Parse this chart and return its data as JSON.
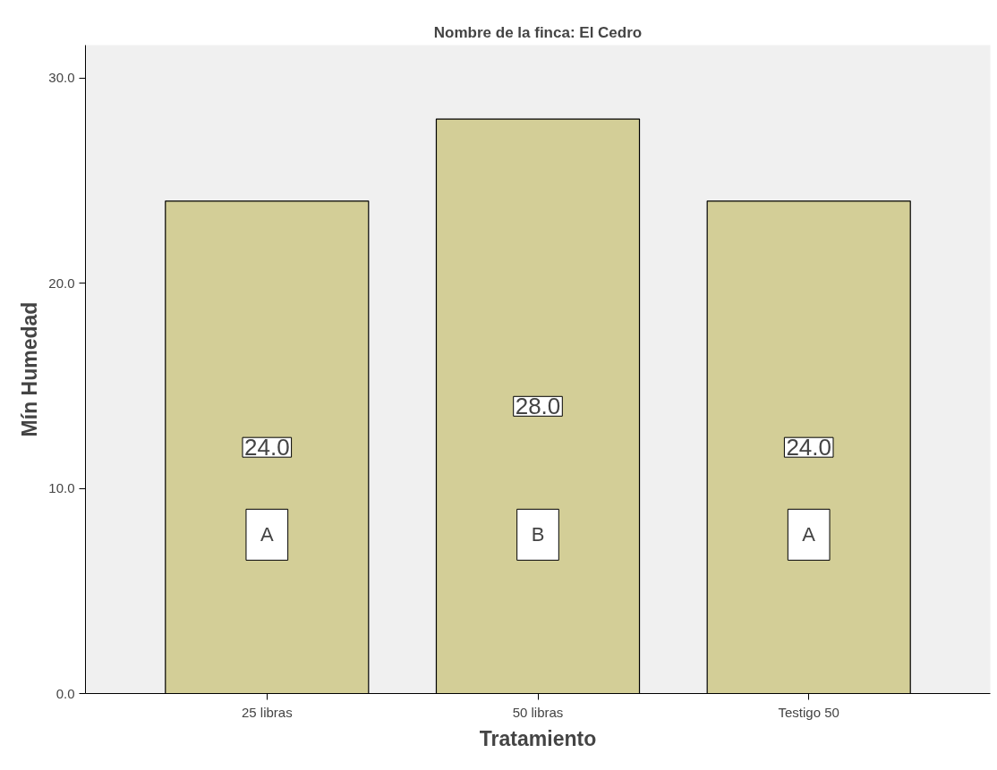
{
  "chart_data": {
    "type": "bar",
    "title": "Nombre de la finca: El Cedro",
    "xlabel": "Tratamiento",
    "ylabel": "Mín Humedad",
    "categories": [
      "25 libras",
      "50 libras",
      "Testigo 50"
    ],
    "values": [
      24,
      28,
      24
    ],
    "value_labels": [
      "24.0",
      "28.0",
      "24.0"
    ],
    "color": "#d3ce97",
    "ylim": [
      0,
      31.6
    ],
    "yticks": [
      {
        "value": 0,
        "label": "0.0"
      },
      {
        "value": 10,
        "label": "10.0"
      },
      {
        "value": 20,
        "label": "20.0"
      },
      {
        "value": 30,
        "label": "30.0"
      }
    ],
    "grid": false,
    "annotations": [
      "A",
      "B",
      "A"
    ]
  }
}
